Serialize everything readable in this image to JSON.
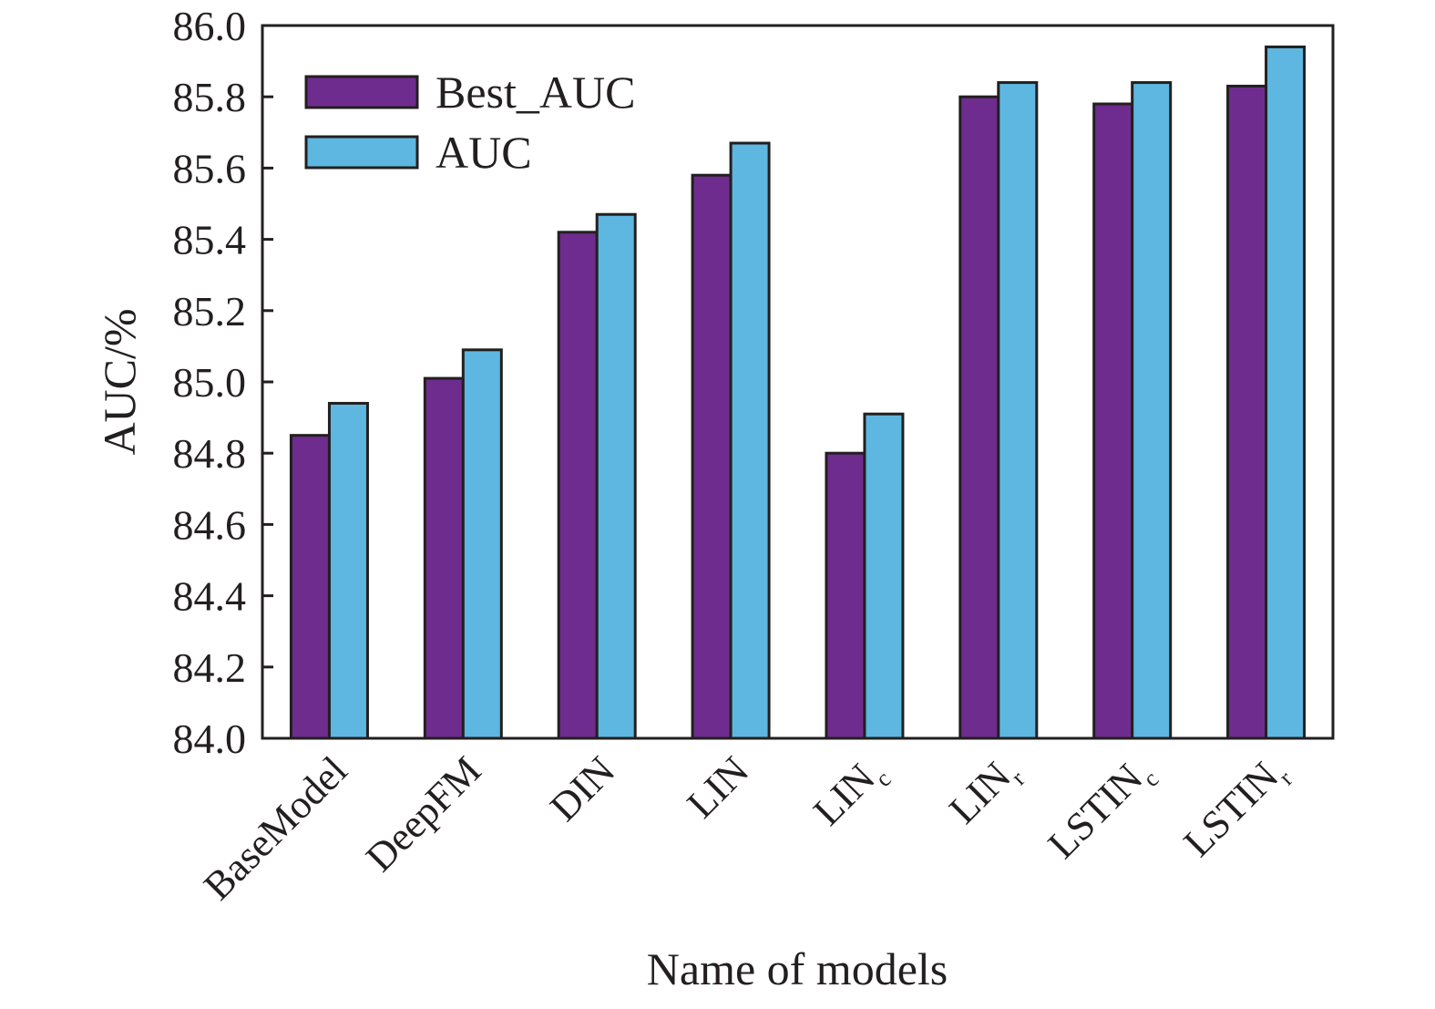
{
  "chart_data": {
    "type": "bar",
    "xlabel": "Name of models",
    "ylabel": "AUC/%",
    "ylim": [
      84.0,
      86.0
    ],
    "yticks": [
      "84.0",
      "84.2",
      "84.4",
      "84.6",
      "84.8",
      "85.0",
      "85.2",
      "85.4",
      "85.6",
      "85.8",
      "86.0"
    ],
    "categories": [
      {
        "base": "BaseModel",
        "sub": ""
      },
      {
        "base": "DeepFM",
        "sub": ""
      },
      {
        "base": "DIN",
        "sub": ""
      },
      {
        "base": "LIN",
        "sub": ""
      },
      {
        "base": "LIN",
        "sub": "c"
      },
      {
        "base": "LIN",
        "sub": "r"
      },
      {
        "base": "LSTIN",
        "sub": "c"
      },
      {
        "base": "LSTIN",
        "sub": "r"
      }
    ],
    "series": [
      {
        "name": "Best_AUC",
        "color": "#6f2c8f",
        "values": [
          84.85,
          85.01,
          85.42,
          85.58,
          84.8,
          85.8,
          85.78,
          85.83
        ]
      },
      {
        "name": "AUC",
        "color": "#5db7e0",
        "values": [
          84.94,
          85.09,
          85.47,
          85.67,
          84.91,
          85.84,
          85.84,
          85.94
        ]
      }
    ],
    "grid": false,
    "legend_position": "top-left"
  }
}
